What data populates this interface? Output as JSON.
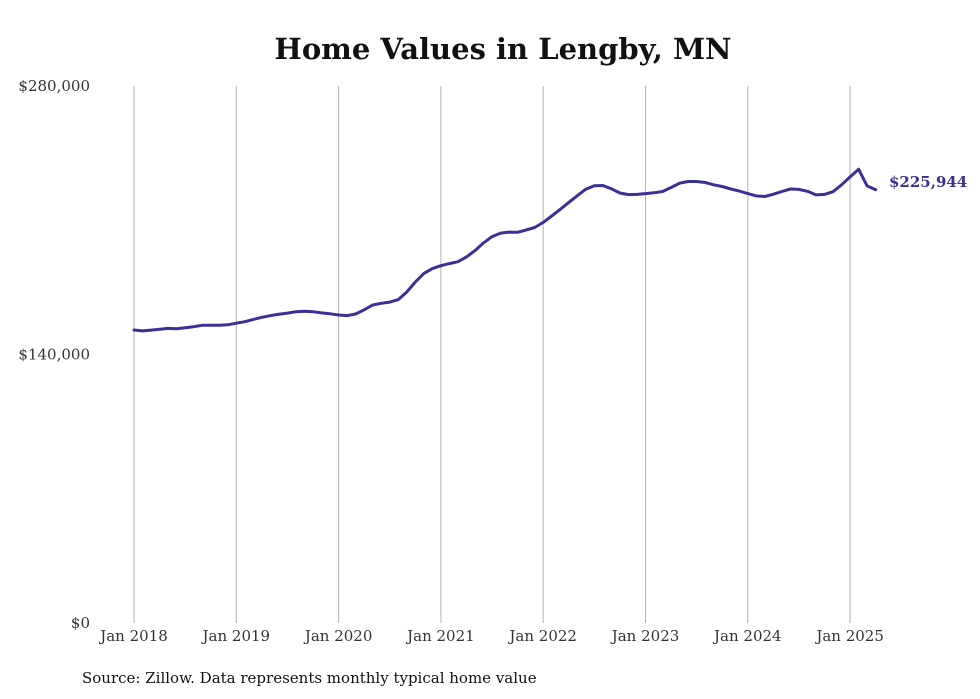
{
  "chart_data": {
    "type": "line",
    "title": "Home Values in Lengby, MN",
    "source": "Source: Zillow. Data represents monthly typical home value",
    "xlabel": "",
    "ylabel": "",
    "x_ticks": [
      "Jan 2018",
      "Jan 2019",
      "Jan 2020",
      "Jan 2021",
      "Jan 2022",
      "Jan 2023",
      "Jan 2024",
      "Jan 2025"
    ],
    "y_ticks": [
      "$0",
      "$140,000",
      "$280,000"
    ],
    "ylim": [
      0,
      280000
    ],
    "xlim": [
      "2018-01",
      "2025-04"
    ],
    "grid": "vertical",
    "end_label": "$225,944",
    "line_color": "#3a3195",
    "series": [
      {
        "color": "#3a3195",
        "x": [
          "2018-01",
          "2018-02",
          "2018-03",
          "2018-04",
          "2018-05",
          "2018-06",
          "2018-07",
          "2018-08",
          "2018-09",
          "2018-10",
          "2018-11",
          "2018-12",
          "2019-01",
          "2019-02",
          "2019-03",
          "2019-04",
          "2019-05",
          "2019-06",
          "2019-07",
          "2019-08",
          "2019-09",
          "2019-10",
          "2019-11",
          "2019-12",
          "2020-01",
          "2020-02",
          "2020-03",
          "2020-04",
          "2020-05",
          "2020-06",
          "2020-07",
          "2020-08",
          "2020-09",
          "2020-10",
          "2020-11",
          "2020-12",
          "2021-01",
          "2021-02",
          "2021-03",
          "2021-04",
          "2021-05",
          "2021-06",
          "2021-07",
          "2021-08",
          "2021-09",
          "2021-10",
          "2021-11",
          "2021-12",
          "2022-01",
          "2022-02",
          "2022-03",
          "2022-04",
          "2022-05",
          "2022-06",
          "2022-07",
          "2022-08",
          "2022-09",
          "2022-10",
          "2022-11",
          "2022-12",
          "2023-01",
          "2023-02",
          "2023-03",
          "2023-04",
          "2023-05",
          "2023-06",
          "2023-07",
          "2023-08",
          "2023-09",
          "2023-10",
          "2023-11",
          "2023-12",
          "2024-01",
          "2024-02",
          "2024-03",
          "2024-04",
          "2024-05",
          "2024-06",
          "2024-07",
          "2024-08",
          "2024-09",
          "2024-10",
          "2024-11",
          "2024-12",
          "2025-01",
          "2025-02",
          "2025-03",
          "2025-04"
        ],
        "values": [
          152800,
          152300,
          152700,
          153200,
          153600,
          153400,
          153900,
          154500,
          155200,
          155300,
          155300,
          155500,
          156300,
          157100,
          158300,
          159400,
          160300,
          161000,
          161600,
          162300,
          162500,
          162300,
          161700,
          161200,
          160600,
          160300,
          161100,
          163300,
          165800,
          166700,
          167300,
          168600,
          172600,
          177800,
          182300,
          184800,
          186300,
          187400,
          188400,
          190900,
          194200,
          198200,
          201500,
          203300,
          203800,
          203700,
          204900,
          206200,
          208900,
          212200,
          215700,
          219300,
          222800,
          226200,
          228000,
          228100,
          226400,
          224200,
          223400,
          223500,
          223900,
          224300,
          225000,
          227100,
          229300,
          230200,
          230200,
          229700,
          228500,
          227600,
          226300,
          225200,
          223900,
          222700,
          222400,
          223600,
          225000,
          226300,
          226100,
          225100,
          223200,
          223500,
          224900,
          228500,
          232600,
          236600,
          227900,
          225944
        ]
      }
    ]
  }
}
